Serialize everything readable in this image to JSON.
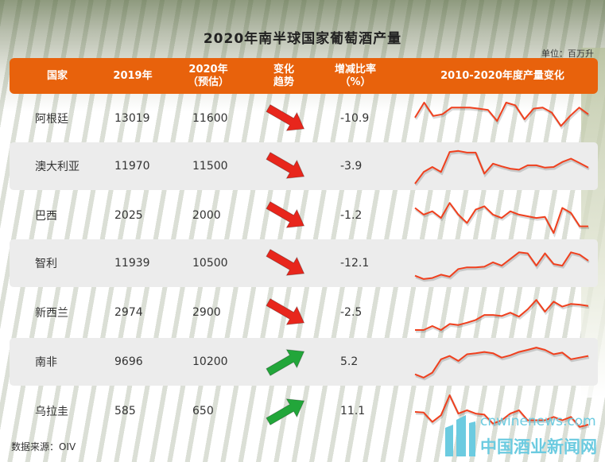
{
  "title": "2020年南半球国家葡萄酒产量",
  "unit": "单位：百万升",
  "source": "数据来源：OIV",
  "watermark": {
    "url": "cnwinenews.com",
    "name": "中国酒业新闻网"
  },
  "colors": {
    "header": "#e8620c",
    "line": "#f0401e",
    "down_arrow": "#e8261c",
    "up_arrow": "#22a63a",
    "alt_row": "#ececec"
  },
  "chart_data": {
    "type": "table",
    "title": "2020年南半球国家葡萄酒产量",
    "columns": [
      "国家",
      "2019年",
      "2020年",
      "（预估）",
      "变化",
      "趋势",
      "增减比率",
      "（%）",
      "2010-2020年度产量变化"
    ],
    "rows": [
      {
        "country": "阿根廷",
        "y2019": "13019",
        "y2020": "11600",
        "trend": "down",
        "pct": "-10.9",
        "spark": [
          55,
          100,
          60,
          65,
          85,
          85,
          85,
          82,
          78,
          45,
          100,
          92,
          50,
          82,
          85,
          70,
          30,
          60,
          85,
          65
        ]
      },
      {
        "country": "澳大利亚",
        "y2019": "11970",
        "y2020": "11500",
        "trend": "down",
        "pct": "-3.9",
        "spark": [
          0,
          35,
          50,
          35,
          95,
          98,
          93,
          93,
          30,
          60,
          52,
          45,
          42,
          55,
          55,
          48,
          50,
          65,
          75,
          62,
          48
        ]
      },
      {
        "country": "巴西",
        "y2019": "2025",
        "y2020": "2000",
        "trend": "down",
        "pct": "-1.2",
        "spark": [
          75,
          55,
          65,
          45,
          90,
          55,
          30,
          70,
          80,
          55,
          45,
          65,
          55,
          50,
          45,
          48,
          0,
          75,
          60,
          20,
          20
        ]
      },
      {
        "country": "智利",
        "y2019": "11939",
        "y2020": "10500",
        "trend": "down",
        "pct": "-12.1",
        "spark": [
          15,
          5,
          8,
          18,
          12,
          35,
          40,
          40,
          42,
          55,
          45,
          65,
          85,
          82,
          45,
          82,
          50,
          45,
          85,
          78,
          60
        ]
      },
      {
        "country": "新西兰",
        "y2019": "2974",
        "y2020": "2900",
        "trend": "down",
        "pct": "-2.5",
        "spark": [
          0,
          0,
          12,
          0,
          18,
          15,
          22,
          30,
          45,
          45,
          42,
          52,
          40,
          62,
          90,
          55,
          85,
          70,
          78,
          76,
          72
        ]
      },
      {
        "country": "南非",
        "y2019": "9696",
        "y2020": "10200",
        "trend": "up",
        "pct": "5.2",
        "spark": [
          15,
          5,
          20,
          60,
          70,
          55,
          75,
          78,
          82,
          78,
          65,
          72,
          82,
          88,
          95,
          88,
          75,
          80,
          60,
          65,
          70
        ]
      },
      {
        "country": "乌拉圭",
        "y2019": "585",
        "y2020": "650",
        "trend": "up",
        "pct": "11.1",
        "spark": [
          50,
          48,
          20,
          40,
          100,
          45,
          55,
          45,
          42,
          15,
          25,
          45,
          55,
          25,
          25,
          25,
          35,
          25,
          35,
          5,
          12
        ]
      }
    ]
  }
}
